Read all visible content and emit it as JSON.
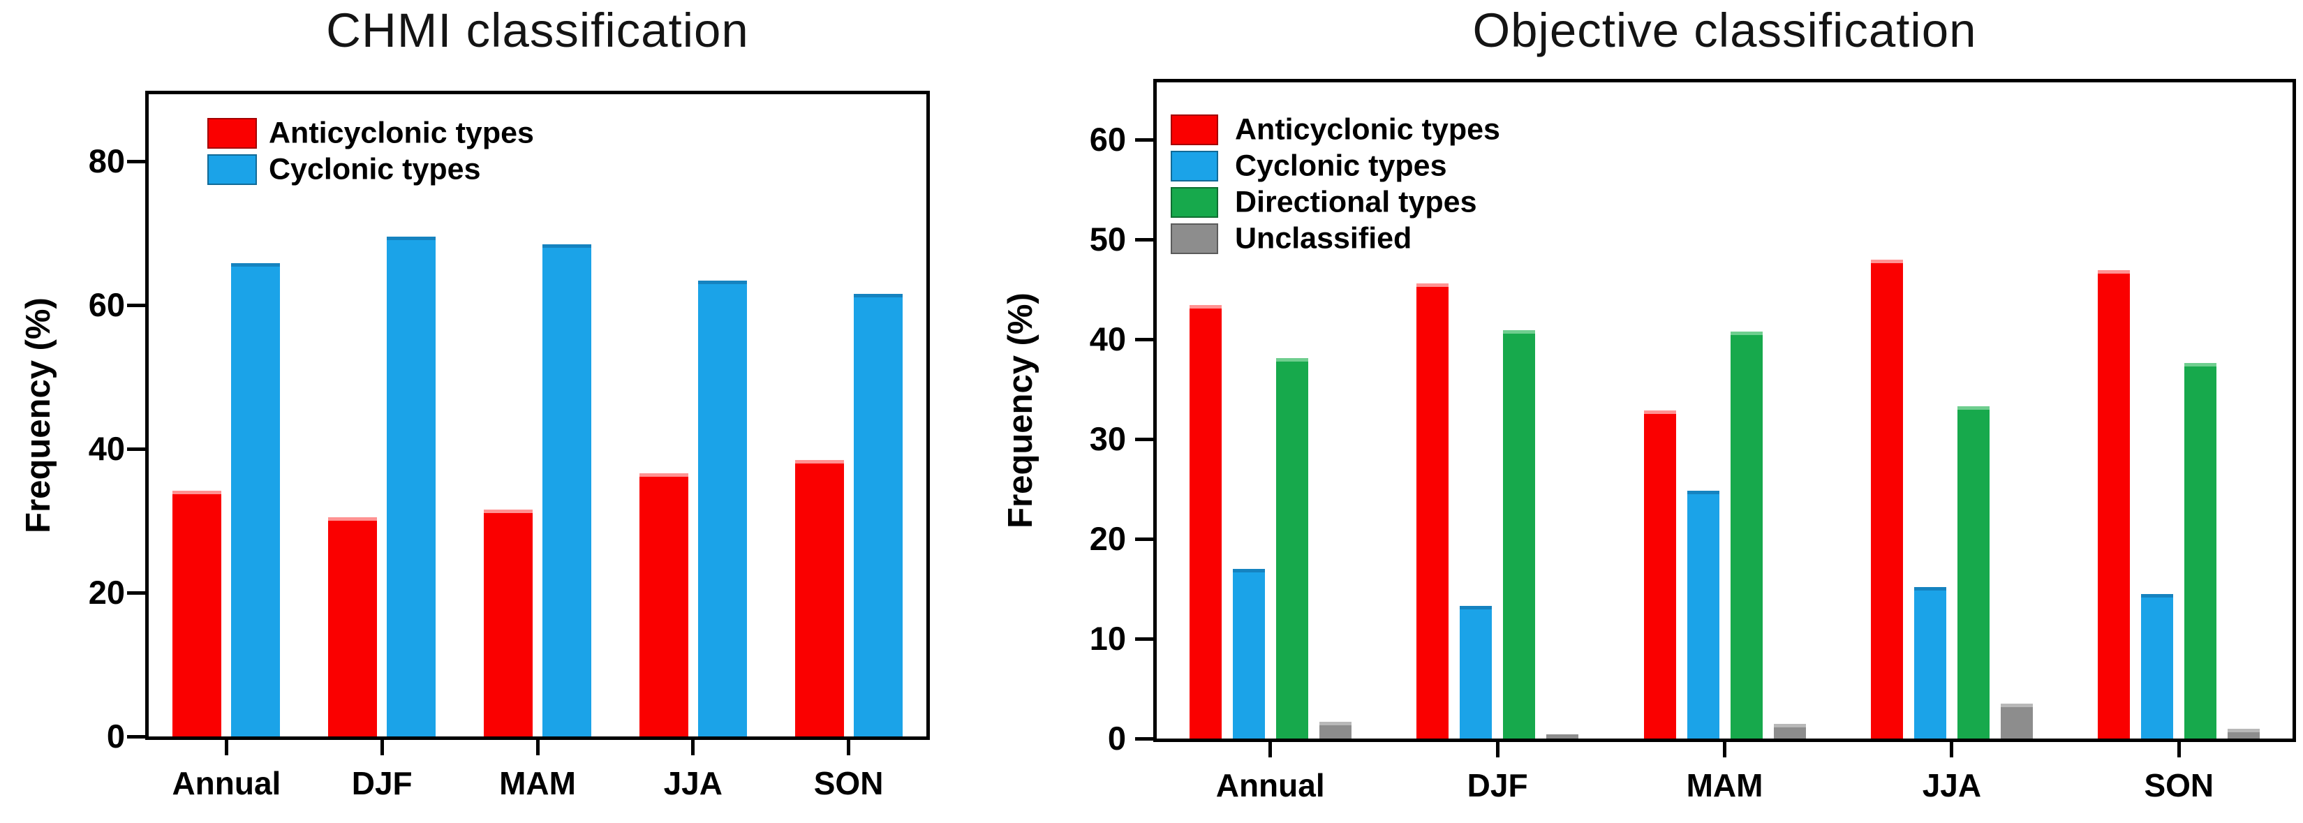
{
  "figure": {
    "background": "#ffffff",
    "text_color": "#000000",
    "axis_color": "#000000"
  },
  "chart_data": [
    {
      "type": "bar",
      "title": "CHMI classification",
      "xlabel": "",
      "ylabel": "Frequency (%)",
      "categories": [
        "Annual",
        "DJF",
        "MAM",
        "JJA",
        "SON"
      ],
      "y_ticks": [
        0,
        20,
        40,
        60,
        80
      ],
      "ylim": [
        0,
        89
      ],
      "grid": false,
      "legend_position": "top-left-inside",
      "series": [
        {
          "name": "Anticyclonic types",
          "color": "#fa0000",
          "edge": "#ff9292",
          "values": [
            34.2,
            30.5,
            31.6,
            36.6,
            38.4
          ]
        },
        {
          "name": "Cyclonic types",
          "color": "#1ba3e8",
          "edge": "#1583c0",
          "values": [
            65.8,
            69.5,
            68.4,
            63.4,
            61.6
          ]
        }
      ]
    },
    {
      "type": "bar",
      "title": "Objective classification",
      "xlabel": "",
      "ylabel": "Frequency (%)",
      "categories": [
        "Annual",
        "DJF",
        "MAM",
        "JJA",
        "SON"
      ],
      "y_ticks": [
        0,
        10,
        20,
        30,
        40,
        50,
        60
      ],
      "ylim": [
        0,
        65.7
      ],
      "grid": false,
      "legend_position": "top-left-inside",
      "series": [
        {
          "name": "Anticyclonic types",
          "color": "#fa0000",
          "edge": "#ff9292",
          "values": [
            43.4,
            45.6,
            32.9,
            48.0,
            46.9
          ]
        },
        {
          "name": "Cyclonic types",
          "color": "#1ba3e8",
          "edge": "#1583c0",
          "values": [
            17.0,
            13.3,
            24.8,
            15.2,
            14.5
          ]
        },
        {
          "name": "Directional types",
          "color": "#17a94c",
          "edge": "#6fce8f",
          "values": [
            38.1,
            40.9,
            40.8,
            33.3,
            37.6
          ]
        },
        {
          "name": "Unclassified",
          "color": "#8d8d8d",
          "edge": "#b8b8b8",
          "values": [
            1.7,
            0.4,
            1.5,
            3.5,
            1.0
          ]
        }
      ]
    }
  ]
}
